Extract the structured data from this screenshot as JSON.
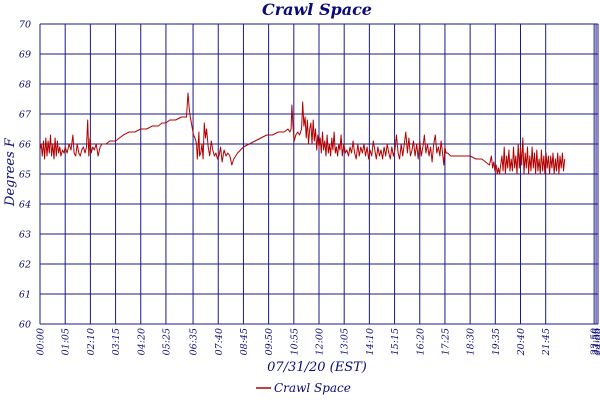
{
  "chart_data": {
    "type": "line",
    "title": "Crawl Space",
    "xlabel": "07/31/20 (EST)",
    "ylabel": "Degrees F",
    "ylim": [
      60,
      70
    ],
    "y_ticks": [
      "60",
      "61",
      "62",
      "63",
      "64",
      "65",
      "66",
      "67",
      "68",
      "69",
      "70"
    ],
    "x_ticks": [
      "00:00",
      "01:05",
      "02:10",
      "03:15",
      "04:20",
      "05:25",
      "06:35",
      "07:40",
      "08:45",
      "09:50",
      "10:55",
      "12:00",
      "13:05",
      "14:10",
      "15:15",
      "16:20",
      "17:25",
      "18:30",
      "19:35",
      "20:40",
      "21:45",
      "23:50",
      "23:55",
      "24:00"
    ],
    "grid": true,
    "legend_position": "bottom-center",
    "series": [
      {
        "name": "Crawl Space",
        "color": "#b30000",
        "points": [
          [
            "00:00",
            65.8
          ],
          [
            "00:03",
            66.0
          ],
          [
            "00:06",
            65.6
          ],
          [
            "00:09",
            66.1
          ],
          [
            "00:12",
            65.5
          ],
          [
            "00:15",
            66.2
          ],
          [
            "00:18",
            65.6
          ],
          [
            "00:21",
            66.1
          ],
          [
            "00:24",
            65.7
          ],
          [
            "00:27",
            66.3
          ],
          [
            "00:30",
            65.6
          ],
          [
            "00:33",
            66.0
          ],
          [
            "00:36",
            65.5
          ],
          [
            "00:39",
            66.2
          ],
          [
            "00:42",
            65.6
          ],
          [
            "00:45",
            66.1
          ],
          [
            "00:48",
            65.7
          ],
          [
            "00:51",
            65.9
          ],
          [
            "00:54",
            65.6
          ],
          [
            "00:58",
            65.8
          ],
          [
            "01:02",
            65.7
          ],
          [
            "01:05",
            65.9
          ],
          [
            "01:10",
            65.7
          ],
          [
            "01:15",
            66.0
          ],
          [
            "01:20",
            65.8
          ],
          [
            "01:25",
            66.3
          ],
          [
            "01:28",
            65.7
          ],
          [
            "01:32",
            65.6
          ],
          [
            "01:36",
            66.0
          ],
          [
            "01:40",
            65.7
          ],
          [
            "01:44",
            65.6
          ],
          [
            "01:48",
            65.8
          ],
          [
            "01:52",
            65.9
          ],
          [
            "01:56",
            65.7
          ],
          [
            "02:00",
            65.9
          ],
          [
            "02:03",
            66.8
          ],
          [
            "02:06",
            65.6
          ],
          [
            "02:09",
            66.2
          ],
          [
            "02:12",
            65.7
          ],
          [
            "02:16",
            65.9
          ],
          [
            "02:20",
            65.8
          ],
          [
            "02:25",
            66.0
          ],
          [
            "02:30",
            65.6
          ],
          [
            "02:35",
            65.9
          ],
          [
            "02:40",
            66.0
          ],
          [
            "02:50",
            66.0
          ],
          [
            "03:00",
            66.1
          ],
          [
            "03:15",
            66.1
          ],
          [
            "03:25",
            66.2
          ],
          [
            "03:35",
            66.3
          ],
          [
            "03:50",
            66.4
          ],
          [
            "04:05",
            66.4
          ],
          [
            "04:20",
            66.5
          ],
          [
            "04:35",
            66.5
          ],
          [
            "04:50",
            66.6
          ],
          [
            "05:05",
            66.6
          ],
          [
            "05:15",
            66.7
          ],
          [
            "05:25",
            66.7
          ],
          [
            "05:35",
            66.8
          ],
          [
            "05:50",
            66.8
          ],
          [
            "06:05",
            66.9
          ],
          [
            "06:15",
            66.9
          ],
          [
            "06:18",
            66.9
          ],
          [
            "06:22",
            67.7
          ],
          [
            "06:25",
            67.2
          ],
          [
            "06:28",
            66.9
          ],
          [
            "06:32",
            66.6
          ],
          [
            "06:36",
            66.3
          ],
          [
            "06:40",
            66.2
          ],
          [
            "06:44",
            66.0
          ],
          [
            "06:46",
            65.5
          ],
          [
            "06:48",
            65.9
          ],
          [
            "06:50",
            66.4
          ],
          [
            "06:52",
            65.6
          ],
          [
            "06:55",
            65.7
          ],
          [
            "06:58",
            66.0
          ],
          [
            "07:01",
            65.5
          ],
          [
            "07:04",
            66.7
          ],
          [
            "07:07",
            66.2
          ],
          [
            "07:10",
            66.5
          ],
          [
            "07:14",
            65.9
          ],
          [
            "07:18",
            65.6
          ],
          [
            "07:22",
            66.1
          ],
          [
            "07:26",
            65.8
          ],
          [
            "07:30",
            65.6
          ],
          [
            "07:34",
            65.7
          ],
          [
            "07:38",
            65.5
          ],
          [
            "07:42",
            65.6
          ],
          [
            "07:46",
            65.9
          ],
          [
            "07:50",
            65.4
          ],
          [
            "07:55",
            65.8
          ],
          [
            "08:00",
            65.6
          ],
          [
            "08:05",
            65.7
          ],
          [
            "08:10",
            65.6
          ],
          [
            "08:15",
            65.3
          ],
          [
            "08:20",
            65.5
          ],
          [
            "08:30",
            65.7
          ],
          [
            "08:45",
            65.9
          ],
          [
            "09:00",
            66.0
          ],
          [
            "09:15",
            66.1
          ],
          [
            "09:30",
            66.2
          ],
          [
            "09:45",
            66.3
          ],
          [
            "10:00",
            66.3
          ],
          [
            "10:15",
            66.4
          ],
          [
            "10:30",
            66.4
          ],
          [
            "10:40",
            66.5
          ],
          [
            "10:45",
            66.4
          ],
          [
            "10:48",
            66.5
          ],
          [
            "10:50",
            67.3
          ],
          [
            "10:53",
            66.6
          ],
          [
            "10:56",
            66.1
          ],
          [
            "11:00",
            66.3
          ],
          [
            "11:05",
            66.4
          ],
          [
            "11:10",
            66.3
          ],
          [
            "11:15",
            66.5
          ],
          [
            "11:18",
            67.4
          ],
          [
            "11:21",
            66.6
          ],
          [
            "11:24",
            66.9
          ],
          [
            "11:27",
            66.2
          ],
          [
            "11:30",
            66.8
          ],
          [
            "11:33",
            66.0
          ],
          [
            "11:36",
            66.5
          ],
          [
            "11:39",
            66.7
          ],
          [
            "11:42",
            66.0
          ],
          [
            "11:45",
            66.8
          ],
          [
            "11:48",
            66.1
          ],
          [
            "11:51",
            66.5
          ],
          [
            "11:54",
            65.8
          ],
          [
            "11:57",
            66.3
          ],
          [
            "12:00",
            65.9
          ],
          [
            "12:03",
            66.2
          ],
          [
            "12:06",
            65.7
          ],
          [
            "12:09",
            66.4
          ],
          [
            "12:12",
            65.8
          ],
          [
            "12:15",
            66.1
          ],
          [
            "12:18",
            65.6
          ],
          [
            "12:21",
            66.3
          ],
          [
            "12:24",
            65.7
          ],
          [
            "12:27",
            66.0
          ],
          [
            "12:30",
            65.6
          ],
          [
            "12:33",
            66.2
          ],
          [
            "12:36",
            65.8
          ],
          [
            "12:39",
            66.4
          ],
          [
            "12:42",
            65.7
          ],
          [
            "12:45",
            65.9
          ],
          [
            "12:48",
            65.6
          ],
          [
            "12:51",
            66.0
          ],
          [
            "12:54",
            65.8
          ],
          [
            "12:57",
            66.3
          ],
          [
            "13:00",
            65.6
          ],
          [
            "13:04",
            66.0
          ],
          [
            "13:08",
            65.7
          ],
          [
            "13:12",
            65.8
          ],
          [
            "13:16",
            65.6
          ],
          [
            "13:20",
            65.9
          ],
          [
            "13:24",
            65.7
          ],
          [
            "13:28",
            66.1
          ],
          [
            "13:32",
            65.7
          ],
          [
            "13:36",
            65.5
          ],
          [
            "13:40",
            66.0
          ],
          [
            "13:44",
            65.6
          ],
          [
            "13:48",
            65.9
          ],
          [
            "13:52",
            65.7
          ],
          [
            "13:56",
            66.0
          ],
          [
            "14:00",
            65.6
          ],
          [
            "14:04",
            65.9
          ],
          [
            "14:08",
            65.5
          ],
          [
            "14:12",
            65.8
          ],
          [
            "14:16",
            65.6
          ],
          [
            "14:20",
            66.1
          ],
          [
            "14:24",
            65.8
          ],
          [
            "14:28",
            65.5
          ],
          [
            "14:32",
            65.9
          ],
          [
            "14:36",
            65.6
          ],
          [
            "14:40",
            65.8
          ],
          [
            "14:44",
            65.5
          ],
          [
            "14:48",
            65.9
          ],
          [
            "14:52",
            65.6
          ],
          [
            "14:56",
            66.0
          ],
          [
            "15:00",
            65.7
          ],
          [
            "15:04",
            65.5
          ],
          [
            "15:08",
            65.9
          ],
          [
            "15:12",
            65.6
          ],
          [
            "15:16",
            65.8
          ],
          [
            "15:20",
            66.3
          ],
          [
            "15:24",
            65.7
          ],
          [
            "15:28",
            65.5
          ],
          [
            "15:32",
            66.0
          ],
          [
            "15:36",
            65.6
          ],
          [
            "15:40",
            66.0
          ],
          [
            "15:44",
            66.4
          ],
          [
            "15:48",
            65.7
          ],
          [
            "15:52",
            66.2
          ],
          [
            "15:56",
            65.6
          ],
          [
            "16:00",
            65.8
          ],
          [
            "16:04",
            66.1
          ],
          [
            "16:08",
            65.6
          ],
          [
            "16:12",
            66.0
          ],
          [
            "16:16",
            65.5
          ],
          [
            "16:20",
            66.1
          ],
          [
            "16:24",
            65.6
          ],
          [
            "16:28",
            65.9
          ],
          [
            "16:32",
            66.3
          ],
          [
            "16:36",
            65.7
          ],
          [
            "16:40",
            66.0
          ],
          [
            "16:44",
            65.6
          ],
          [
            "16:48",
            65.9
          ],
          [
            "16:52",
            65.4
          ],
          [
            "16:56",
            66.0
          ],
          [
            "17:00",
            66.3
          ],
          [
            "17:04",
            65.7
          ],
          [
            "17:08",
            65.9
          ],
          [
            "17:12",
            65.6
          ],
          [
            "17:15",
            66.1
          ],
          [
            "17:18",
            65.8
          ],
          [
            "17:22",
            65.3
          ],
          [
            "17:25",
            65.9
          ],
          [
            "17:28",
            65.7
          ],
          [
            "17:32",
            65.7
          ],
          [
            "17:40",
            65.6
          ],
          [
            "17:50",
            65.6
          ],
          [
            "18:00",
            65.6
          ],
          [
            "18:15",
            65.6
          ],
          [
            "18:30",
            65.6
          ],
          [
            "18:45",
            65.5
          ],
          [
            "19:00",
            65.5
          ],
          [
            "19:10",
            65.4
          ],
          [
            "19:20",
            65.3
          ],
          [
            "19:25",
            65.6
          ],
          [
            "19:28",
            65.2
          ],
          [
            "19:31",
            65.4
          ],
          [
            "19:34",
            65.1
          ],
          [
            "19:37",
            65.3
          ],
          [
            "19:40",
            65.0
          ],
          [
            "19:43",
            65.2
          ],
          [
            "19:46",
            65.0
          ],
          [
            "19:49",
            65.3
          ],
          [
            "19:52",
            65.6
          ],
          [
            "19:55",
            65.1
          ],
          [
            "19:58",
            65.9
          ],
          [
            "20:01",
            65.0
          ],
          [
            "20:04",
            65.6
          ],
          [
            "20:07",
            65.2
          ],
          [
            "20:10",
            65.8
          ],
          [
            "20:13",
            65.1
          ],
          [
            "20:16",
            65.5
          ],
          [
            "20:19",
            65.1
          ],
          [
            "20:22",
            65.9
          ],
          [
            "20:25",
            65.2
          ],
          [
            "20:28",
            65.6
          ],
          [
            "20:31",
            65.0
          ],
          [
            "20:34",
            66.0
          ],
          [
            "20:37",
            65.2
          ],
          [
            "20:40",
            65.9
          ],
          [
            "20:43",
            65.3
          ],
          [
            "20:46",
            66.2
          ],
          [
            "20:49",
            65.0
          ],
          [
            "20:52",
            65.7
          ],
          [
            "20:55",
            65.2
          ],
          [
            "20:58",
            65.9
          ],
          [
            "21:01",
            65.0
          ],
          [
            "21:04",
            65.6
          ],
          [
            "21:07",
            65.1
          ],
          [
            "21:10",
            65.9
          ],
          [
            "21:13",
            65.2
          ],
          [
            "21:16",
            65.7
          ],
          [
            "21:19",
            65.0
          ],
          [
            "21:22",
            65.8
          ],
          [
            "21:25",
            65.1
          ],
          [
            "21:28",
            65.5
          ],
          [
            "21:31",
            65.0
          ],
          [
            "21:34",
            65.8
          ],
          [
            "21:37",
            65.1
          ],
          [
            "21:40",
            65.6
          ],
          [
            "21:43",
            65.0
          ],
          [
            "21:46",
            65.7
          ],
          [
            "21:49",
            65.2
          ],
          [
            "21:52",
            65.6
          ],
          [
            "21:55",
            65.0
          ],
          [
            "21:58",
            65.6
          ],
          [
            "22:01",
            65.2
          ],
          [
            "22:04",
            65.7
          ],
          [
            "22:07",
            65.0
          ],
          [
            "22:10",
            65.5
          ],
          [
            "22:13",
            65.1
          ],
          [
            "22:16",
            65.7
          ],
          [
            "22:19",
            65.0
          ],
          [
            "22:22",
            65.6
          ],
          [
            "22:25",
            65.2
          ],
          [
            "22:28",
            65.7
          ],
          [
            "22:31",
            65.1
          ],
          [
            "22:34",
            65.5
          ]
        ]
      }
    ]
  }
}
